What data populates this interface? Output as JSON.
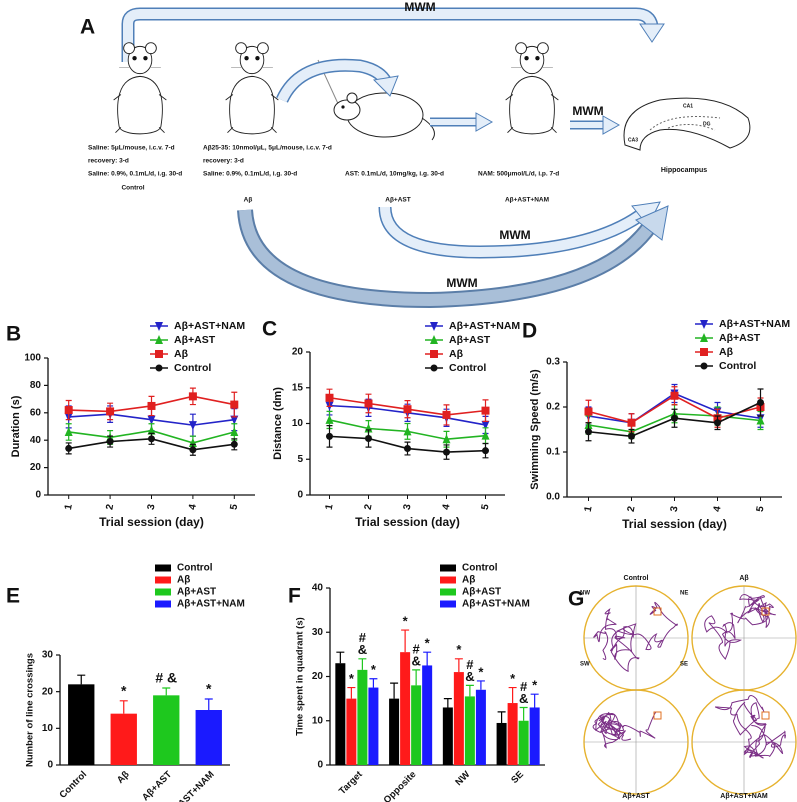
{
  "figure": {
    "panel_a": {
      "label": "A",
      "mwm": [
        "MWM",
        "MWM",
        "MWM",
        "MWM"
      ],
      "groups": [
        {
          "lines": [
            "Saline: 5μL/mouse, i.c.v. 7-d",
            "recovery: 3-d",
            "Saline: 0.9%, 0.1mL/d, i.g.  30-d"
          ],
          "name": "Control"
        },
        {
          "lines": [
            "Aβ25-35: 10nmol/μL, 5μL/mouse, i.c.v. 7-d",
            "recovery: 3-d",
            "Saline: 0.9%, 0.1mL/d, i.g.  30-d"
          ],
          "name": "Aβ"
        },
        {
          "lines": [
            "AST: 0.1mL/d, 10mg/kg, i.g. 30-d"
          ],
          "name": "Aβ+AST"
        },
        {
          "lines": [
            "NAM: 500μmol/L/d, i.p. 7-d"
          ],
          "name": "Aβ+AST+NAM"
        }
      ],
      "hippocampus": "Hippocampus",
      "hippocampus_regions": [
        "CA1",
        "DG",
        "CA3"
      ]
    },
    "panel_g": {
      "label": "G",
      "groups": [
        "Control",
        "Aβ",
        "Aβ+AST",
        "Aβ+AST+NAM"
      ],
      "quadrants": [
        "NW",
        "NE",
        "SW",
        "SE"
      ]
    }
  },
  "chart_data": [
    {
      "type": "line",
      "label": "B",
      "ylabel": "Duration (s)",
      "xlabel": "Trial session (day)",
      "categories": [
        "1",
        "2",
        "3",
        "4",
        "5"
      ],
      "ylim": [
        0,
        100
      ],
      "yticks": [
        0,
        20,
        40,
        60,
        80,
        100
      ],
      "series": [
        {
          "name": "Aβ+AST+NAM",
          "color": "#2323c8",
          "marker": "triangle-down",
          "values": [
            57,
            59,
            55,
            51,
            55
          ],
          "errors": [
            8,
            6,
            8,
            8,
            8
          ]
        },
        {
          "name": "Aβ+AST",
          "color": "#22b422",
          "marker": "triangle-up",
          "values": [
            46,
            42,
            47,
            38,
            46
          ],
          "errors": [
            6,
            5,
            5,
            5,
            6
          ]
        },
        {
          "name": "Aβ",
          "color": "#e02020",
          "marker": "square",
          "values": [
            62,
            61,
            65,
            72,
            66
          ],
          "errors": [
            7,
            6,
            7,
            6,
            9
          ]
        },
        {
          "name": "Control",
          "color": "#111111",
          "marker": "circle",
          "values": [
            34,
            39,
            41,
            33,
            37
          ],
          "errors": [
            4,
            4,
            4,
            4,
            4
          ]
        }
      ]
    },
    {
      "type": "line",
      "label": "C",
      "ylabel": "Distance (dm)",
      "xlabel": "Trial session (day)",
      "categories": [
        "1",
        "2",
        "3",
        "4",
        "5"
      ],
      "ylim": [
        0,
        20
      ],
      "yticks": [
        0,
        5,
        10,
        15,
        20
      ],
      "series": [
        {
          "name": "Aβ+AST+NAM",
          "color": "#2323c8",
          "marker": "triangle-down",
          "values": [
            12.5,
            12.2,
            11.5,
            10.8,
            9.8
          ],
          "errors": [
            1.3,
            1.2,
            1.2,
            1.2,
            1.2
          ]
        },
        {
          "name": "Aβ+AST",
          "color": "#22b422",
          "marker": "triangle-up",
          "values": [
            10.5,
            9.3,
            8.9,
            7.8,
            8.3
          ],
          "errors": [
            1.2,
            1.1,
            1.1,
            1.1,
            1.1
          ]
        },
        {
          "name": "Aβ",
          "color": "#e02020",
          "marker": "square",
          "values": [
            13.6,
            12.8,
            12,
            11.2,
            11.8
          ],
          "errors": [
            1.2,
            1.3,
            1.2,
            1.4,
            1.5
          ]
        },
        {
          "name": "Control",
          "color": "#111111",
          "marker": "circle",
          "values": [
            8.2,
            7.9,
            6.5,
            6,
            6.2
          ],
          "errors": [
            1.5,
            1.2,
            0.9,
            1,
            1
          ]
        }
      ]
    },
    {
      "type": "line",
      "label": "D",
      "ylabel": "Swimming Speed (m/s)",
      "xlabel": "Trial session (day)",
      "categories": [
        "1",
        "2",
        "3",
        "4",
        "5"
      ],
      "ylim": [
        0,
        0.3
      ],
      "yticks": [
        {
          "value": 0,
          "label": "0.0"
        },
        0.1,
        0.2,
        0.3
      ],
      "series": [
        {
          "name": "Aβ+AST+NAM",
          "color": "#2323c8",
          "marker": "triangle-down",
          "values": [
            0.18,
            0.165,
            0.23,
            0.19,
            0.175
          ],
          "errors": [
            0.02,
            0.02,
            0.02,
            0.02,
            0.02
          ]
        },
        {
          "name": "Aβ+AST",
          "color": "#22b422",
          "marker": "triangle-up",
          "values": [
            0.16,
            0.145,
            0.185,
            0.18,
            0.17
          ],
          "errors": [
            0.02,
            0.015,
            0.02,
            0.02,
            0.02
          ]
        },
        {
          "name": "Aβ",
          "color": "#e02020",
          "marker": "square",
          "values": [
            0.19,
            0.165,
            0.225,
            0.175,
            0.2
          ],
          "errors": [
            0.025,
            0.02,
            0.02,
            0.02,
            0.02
          ]
        },
        {
          "name": "Control",
          "color": "#111111",
          "marker": "circle",
          "values": [
            0.145,
            0.135,
            0.175,
            0.165,
            0.21
          ],
          "errors": [
            0.02,
            0.015,
            0.02,
            0.015,
            0.03
          ]
        }
      ]
    },
    {
      "type": "bar",
      "label": "E",
      "ylabel": "Number of line crossings",
      "categories": [
        "Control",
        "Aβ",
        "Aβ+AST",
        "Aβ+AST+NAM"
      ],
      "ylim": [
        0,
        30
      ],
      "yticks": [
        0,
        10,
        20,
        30
      ],
      "values": [
        22,
        14,
        19,
        15
      ],
      "errors": [
        2.5,
        3.5,
        2,
        3
      ],
      "colors": [
        "#000000",
        "#ff1a1a",
        "#1ec81e",
        "#1a1aff"
      ],
      "annotations": [
        null,
        "*",
        "# &",
        "*"
      ],
      "legend": true
    },
    {
      "type": "grouped_bar",
      "label": "F",
      "ylabel": "Time spent in quadrant (s)",
      "categories": [
        "Target",
        "Opposite",
        "NW",
        "SE"
      ],
      "ylim": [
        0,
        40
      ],
      "yticks": [
        0,
        10,
        20,
        30,
        40
      ],
      "series": [
        {
          "name": "Control",
          "color": "#000000",
          "values": [
            23,
            15,
            13,
            9.5
          ],
          "errors": [
            2.5,
            3.5,
            2,
            2.5
          ],
          "annotations": [
            null,
            null,
            null,
            null
          ]
        },
        {
          "name": "Aβ",
          "color": "#ff1a1a",
          "values": [
            15,
            25.5,
            21,
            14
          ],
          "errors": [
            2.5,
            5,
            3,
            3.5
          ],
          "annotations": [
            [
              "*"
            ],
            [
              "*"
            ],
            [
              "*"
            ],
            [
              "*"
            ]
          ]
        },
        {
          "name": "Aβ+AST",
          "color": "#1ec81e",
          "values": [
            21.5,
            18,
            15.5,
            10
          ],
          "errors": [
            2.5,
            3.5,
            2.5,
            3
          ],
          "annotations": [
            [
              "#",
              "&"
            ],
            [
              "#",
              "&"
            ],
            [
              "#",
              "&"
            ],
            [
              "#",
              "&"
            ]
          ]
        },
        {
          "name": "Aβ+AST+NAM",
          "color": "#1a1aff",
          "values": [
            17.5,
            22.5,
            17,
            13
          ],
          "errors": [
            2,
            3,
            2,
            3
          ],
          "annotations": [
            [
              "*"
            ],
            [
              "*"
            ],
            [
              "*"
            ],
            [
              "*"
            ]
          ]
        }
      ]
    }
  ]
}
